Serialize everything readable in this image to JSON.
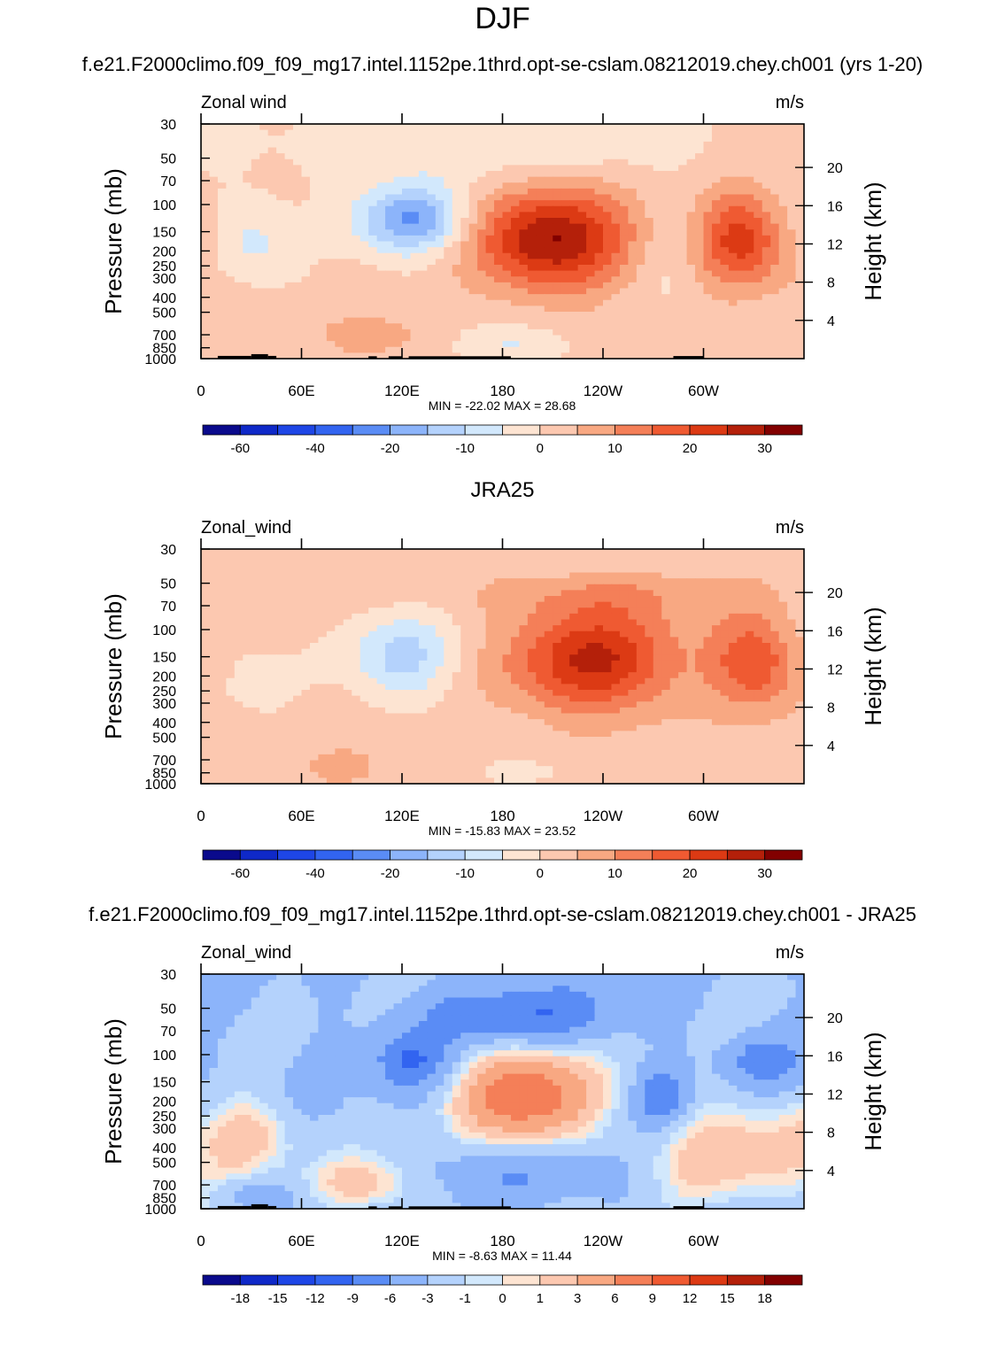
{
  "figure": {
    "season": "DJF",
    "case_title": "f.e21.F2000climo.f09_f09_mg17.intel.1152pe.1thrd.opt-se-cslam.08212019.chey.ch001 (yrs 1-20)",
    "obs_title": "JRA25",
    "diff_title": "f.e21.F2000climo.f09_f09_mg17.intel.1152pe.1thrd.opt-se-cslam.08212019.chey.ch001 - JRA25"
  },
  "colors": {
    "palette": [
      "#0a0a8c",
      "#0f29c8",
      "#1e46e6",
      "#3264f0",
      "#5a8cf5",
      "#8cb4fa",
      "#b4d2fc",
      "#d2e8fc",
      "#fde4d2",
      "#fcc8b0",
      "#f8a882",
      "#f47f58",
      "#ef5a32",
      "#dc3a14",
      "#b4200a",
      "#820000"
    ],
    "land": "#000000",
    "axes": "#000000"
  },
  "chart_data": [
    {
      "type": "heatmap",
      "panel": "model",
      "label_left": "Zonal wind",
      "label_right": "m/s",
      "ylabel": "Pressure (mb)",
      "ylabel_right": "Height (km)",
      "x_ticks": [
        "0",
        "60E",
        "120E",
        "180",
        "120W",
        "60W"
      ],
      "y_ticks": [
        "30",
        "50",
        "70",
        "100",
        "150",
        "200",
        "250",
        "300",
        "400",
        "500",
        "700",
        "850",
        "1000"
      ],
      "height_ticks": [
        "20",
        "16",
        "12",
        "8",
        "4"
      ],
      "stats": "MIN = -22.02  MAX =  28.68",
      "colorbar_labels": [
        "-60",
        "-40",
        "-20",
        "-10",
        "0",
        "10",
        "20",
        "30"
      ],
      "levels": [
        -70,
        -60,
        -50,
        -40,
        -30,
        -20,
        -15,
        -10,
        -5,
        0,
        5,
        10,
        15,
        20,
        25,
        30,
        35
      ],
      "blobs": [
        {
          "lon": 210,
          "p": 170,
          "amp": 29,
          "w": 32,
          "h": 0.55
        },
        {
          "lon": 322,
          "p": 170,
          "amp": 22,
          "w": 18,
          "h": 0.5
        },
        {
          "lon": 125,
          "p": 125,
          "amp": -22,
          "w": 22,
          "h": 0.35
        },
        {
          "lon": 30,
          "p": 180,
          "amp": -8,
          "w": 15,
          "h": 0.5
        },
        {
          "lon": 105,
          "p": 720,
          "amp": 7,
          "w": 25,
          "h": 0.25
        },
        {
          "lon": 170,
          "p": 45,
          "amp": -5,
          "w": 80,
          "h": 0.35
        },
        {
          "lon": 185,
          "p": 820,
          "amp": -6,
          "w": 25,
          "h": 0.2
        },
        {
          "lon": 280,
          "p": 250,
          "amp": -3,
          "w": 10,
          "h": 0.6
        },
        {
          "lon": 20,
          "p": 400,
          "amp": 3,
          "w": 20,
          "h": 0.6
        }
      ],
      "base": 1
    },
    {
      "type": "heatmap",
      "panel": "obs",
      "label_left": "Zonal_wind",
      "label_right": "m/s",
      "ylabel": "Pressure (mb)",
      "ylabel_right": "Height (km)",
      "x_ticks": [
        "0",
        "60E",
        "120E",
        "180",
        "120W",
        "60W"
      ],
      "y_ticks": [
        "30",
        "50",
        "70",
        "100",
        "150",
        "200",
        "250",
        "300",
        "400",
        "500",
        "700",
        "850",
        "1000"
      ],
      "height_ticks": [
        "20",
        "16",
        "12",
        "8",
        "4"
      ],
      "stats": "MIN = -15.83  MAX =  23.52",
      "colorbar_labels": [
        "-60",
        "-40",
        "-20",
        "-10",
        "0",
        "10",
        "20",
        "30"
      ],
      "levels": [
        -70,
        -60,
        -50,
        -40,
        -30,
        -20,
        -15,
        -10,
        -5,
        0,
        5,
        10,
        15,
        20,
        25,
        30,
        35
      ],
      "blobs": [
        {
          "lon": 235,
          "p": 160,
          "amp": 24,
          "w": 35,
          "h": 0.55
        },
        {
          "lon": 330,
          "p": 160,
          "amp": 18,
          "w": 18,
          "h": 0.5
        },
        {
          "lon": 120,
          "p": 150,
          "amp": -14,
          "w": 22,
          "h": 0.45
        },
        {
          "lon": 30,
          "p": 200,
          "amp": -3,
          "w": 20,
          "h": 0.6
        },
        {
          "lon": 240,
          "p": 60,
          "amp": 6,
          "w": 60,
          "h": 0.25
        },
        {
          "lon": 210,
          "p": 850,
          "amp": -3,
          "w": 40,
          "h": 0.2
        },
        {
          "lon": 90,
          "p": 800,
          "amp": 4,
          "w": 30,
          "h": 0.25
        }
      ],
      "base": 2
    },
    {
      "type": "heatmap",
      "panel": "difference",
      "label_left": "Zonal_wind",
      "label_right": "m/s",
      "ylabel": "Pressure (mb)",
      "ylabel_right": "Height (km)",
      "x_ticks": [
        "0",
        "60E",
        "120E",
        "180",
        "120W",
        "60W"
      ],
      "y_ticks": [
        "30",
        "50",
        "70",
        "100",
        "150",
        "200",
        "250",
        "300",
        "400",
        "500",
        "700",
        "850",
        "1000"
      ],
      "height_ticks": [
        "20",
        "16",
        "12",
        "8",
        "4"
      ],
      "stats": "MIN =  -8.63  MAX =  11.44",
      "colorbar_labels": [
        "-18",
        "-15",
        "-12",
        "-9",
        "-6",
        "-3",
        "-1",
        "0",
        "1",
        "3",
        "6",
        "9",
        "12",
        "15",
        "18"
      ],
      "levels": [
        -21,
        -18,
        -15,
        -12,
        -9,
        -6,
        -3,
        -1,
        0,
        1,
        3,
        6,
        9,
        12,
        15,
        18,
        21
      ],
      "blobs": [
        {
          "lon": 195,
          "p": 190,
          "amp": 11.5,
          "w": 28,
          "h": 0.5
        },
        {
          "lon": 190,
          "p": 55,
          "amp": -6,
          "w": 40,
          "h": 0.3
        },
        {
          "lon": 125,
          "p": 110,
          "amp": -6,
          "w": 15,
          "h": 0.3
        },
        {
          "lon": 275,
          "p": 190,
          "amp": -6,
          "w": 10,
          "h": 0.3
        },
        {
          "lon": 335,
          "p": 110,
          "amp": -5,
          "w": 15,
          "h": 0.25
        },
        {
          "lon": 30,
          "p": 320,
          "amp": 4,
          "w": 20,
          "h": 0.4
        },
        {
          "lon": 100,
          "p": 700,
          "amp": 5,
          "w": 25,
          "h": 0.3
        },
        {
          "lon": 320,
          "p": 450,
          "amp": 5,
          "w": 40,
          "h": 0.6
        },
        {
          "lon": 30,
          "p": 780,
          "amp": -3,
          "w": 15,
          "h": 0.15
        },
        {
          "lon": 200,
          "p": 600,
          "amp": -3,
          "w": 40,
          "h": 0.3
        }
      ],
      "base": -3
    }
  ]
}
